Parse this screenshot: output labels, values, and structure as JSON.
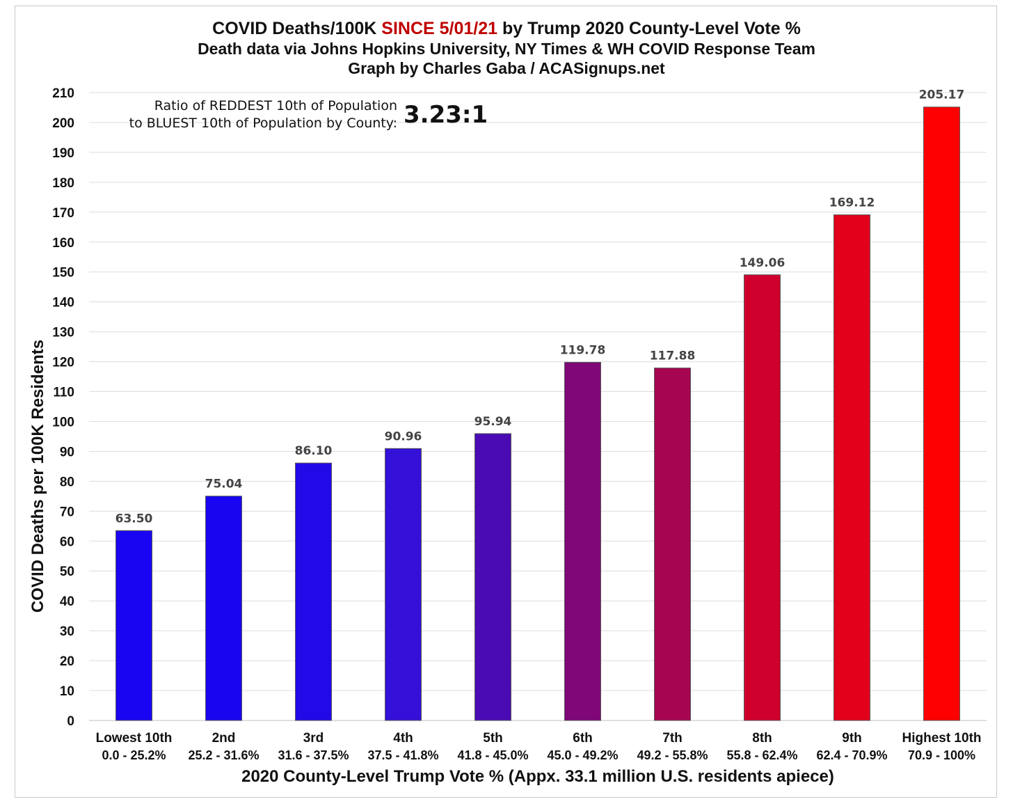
{
  "title": {
    "part1": "COVID Deaths/100K ",
    "highlight": "SINCE 5/01/21",
    "part2": " by Trump 2020 County-Level Vote %",
    "highlight_color": "#c00000"
  },
  "subtitle_lines": [
    "Death data via Johns Hopkins University, NY Times & WH COVID Response Team",
    "Graph by Charles Gaba / ACASignups.net"
  ],
  "annotation": {
    "label_line1": "Ratio of REDDEST 10th of Population",
    "label_line2": "to BLUEST 10th of Population by County:",
    "value": "3.23:1"
  },
  "chart_data": {
    "type": "bar",
    "categories": [
      "Lowest 10th",
      "2nd",
      "3rd",
      "4th",
      "5th",
      "6th",
      "7th",
      "8th",
      "9th",
      "Highest 10th"
    ],
    "category_ranges": [
      "0.0 - 25.2%",
      "25.2 - 31.6%",
      "31.6 - 37.5%",
      "37.5 - 41.8%",
      "41.8 - 45.0%",
      "45.0 - 49.2%",
      "49.2 - 55.8%",
      "55.8 - 62.4%",
      "62.4 - 70.9%",
      "70.9 - 100%"
    ],
    "values": [
      63.5,
      75.04,
      86.1,
      90.96,
      95.94,
      119.78,
      117.88,
      149.06,
      169.12,
      205.17
    ],
    "value_labels": [
      "63.50",
      "75.04",
      "86.10",
      "90.96",
      "95.94",
      "119.78",
      "117.88",
      "149.06",
      "169.12",
      "205.17"
    ],
    "bar_colors": [
      "#1a05f2",
      "#1905f0",
      "#2209e8",
      "#3410d8",
      "#4a0bb4",
      "#7f0778",
      "#a60551",
      "#d0002c",
      "#e3001b",
      "#ff0000"
    ],
    "xlabel": "2020 County-Level Trump Vote % (Appx. 33.1 million U.S. residents apiece)",
    "ylabel": "COVID Deaths per 100K Residents",
    "ylim": [
      0,
      210
    ],
    "yticks": [
      0,
      10,
      20,
      30,
      40,
      50,
      60,
      70,
      80,
      90,
      100,
      110,
      120,
      130,
      140,
      150,
      160,
      170,
      180,
      190,
      200,
      210
    ],
    "grid": true,
    "legend": "none"
  }
}
